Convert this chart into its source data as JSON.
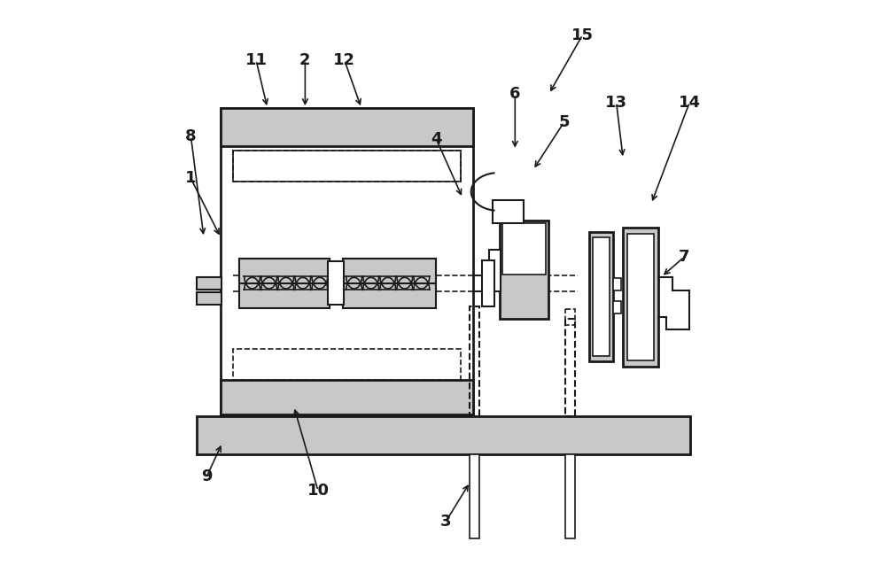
{
  "line_color": "#1a1a1a",
  "fill_light": "#c8c8c8",
  "label_arrows": {
    "1": {
      "txt": [
        0.052,
        0.685
      ],
      "target": [
        0.105,
        0.58
      ]
    },
    "2": {
      "txt": [
        0.255,
        0.895
      ],
      "target": [
        0.255,
        0.81
      ]
    },
    "3": {
      "txt": [
        0.505,
        0.075
      ],
      "target": [
        0.548,
        0.145
      ]
    },
    "4": {
      "txt": [
        0.488,
        0.755
      ],
      "target": [
        0.535,
        0.65
      ]
    },
    "5": {
      "txt": [
        0.715,
        0.785
      ],
      "target": [
        0.66,
        0.7
      ]
    },
    "6": {
      "txt": [
        0.628,
        0.835
      ],
      "target": [
        0.628,
        0.735
      ]
    },
    "7": {
      "txt": [
        0.928,
        0.545
      ],
      "target": [
        0.888,
        0.51
      ]
    },
    "8": {
      "txt": [
        0.052,
        0.76
      ],
      "target": [
        0.075,
        0.58
      ]
    },
    "9": {
      "txt": [
        0.08,
        0.155
      ],
      "target": [
        0.108,
        0.215
      ]
    },
    "10": {
      "txt": [
        0.278,
        0.13
      ],
      "target": [
        0.235,
        0.28
      ]
    },
    "11": {
      "txt": [
        0.168,
        0.895
      ],
      "target": [
        0.188,
        0.81
      ]
    },
    "12": {
      "txt": [
        0.325,
        0.895
      ],
      "target": [
        0.355,
        0.81
      ]
    },
    "13": {
      "txt": [
        0.808,
        0.82
      ],
      "target": [
        0.82,
        0.72
      ]
    },
    "14": {
      "txt": [
        0.938,
        0.82
      ],
      "target": [
        0.87,
        0.64
      ]
    },
    "15": {
      "txt": [
        0.748,
        0.94
      ],
      "target": [
        0.688,
        0.835
      ]
    }
  }
}
